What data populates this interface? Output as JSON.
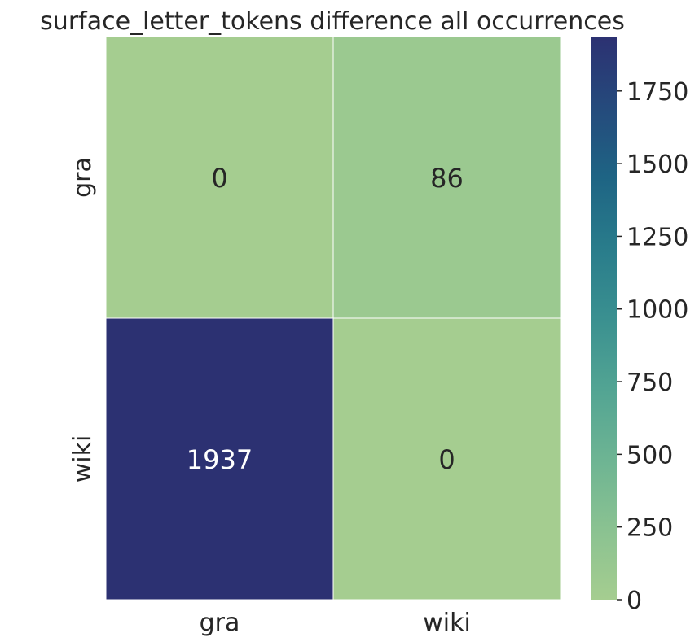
{
  "chart_data": {
    "type": "heatmap",
    "title": "surface_letter_tokens difference all occurrences",
    "x_categories": [
      "gra",
      "wiki"
    ],
    "y_categories": [
      "gra",
      "wiki"
    ],
    "values": [
      [
        0,
        86
      ],
      [
        1937,
        0
      ]
    ],
    "value_labels": [
      [
        "0",
        "86"
      ],
      [
        "1937",
        "0"
      ]
    ],
    "colorbar": {
      "range": [
        0,
        1937
      ],
      "ticks": [
        0,
        250,
        500,
        750,
        1000,
        1250,
        1500,
        1750
      ],
      "tick_labels": [
        "0",
        "250",
        "500",
        "750",
        "1000",
        "1250",
        "1500",
        "1750"
      ]
    },
    "colormap": "crest",
    "colors": {
      "low": "#a5cd90",
      "high": "#2c3172",
      "dark_text": "#262626",
      "light_text": "#ffffff",
      "cell_border": "#ffffff"
    }
  }
}
